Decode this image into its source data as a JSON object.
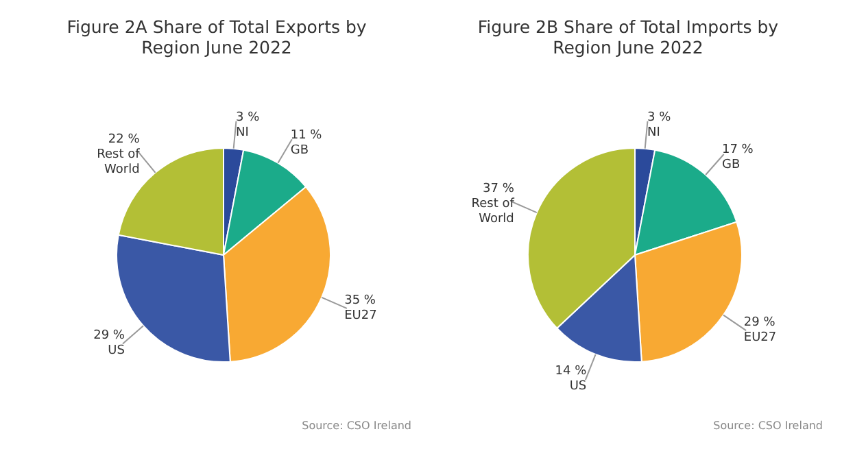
{
  "chart_data": [
    {
      "type": "pie",
      "title": "Figure 2A Share of Total Exports by Region June 2022",
      "categories": [
        "NI",
        "GB",
        "EU27",
        "US",
        "Rest of World"
      ],
      "values": [
        3,
        11,
        35,
        29,
        22
      ],
      "value_labels": [
        "3 %",
        "11 %",
        "35 %",
        "29 %",
        "22 %"
      ],
      "colors": [
        "#2b4a9b",
        "#1bab8a",
        "#f8a933",
        "#3a58a6",
        "#b3bf36"
      ],
      "annotations": [
        "Source: CSO Ireland"
      ]
    },
    {
      "type": "pie",
      "title": "Figure 2B Share of Total Imports by Region June 2022",
      "categories": [
        "NI",
        "GB",
        "EU27",
        "US",
        "Rest of World"
      ],
      "values": [
        3,
        17,
        29,
        14,
        37
      ],
      "value_labels": [
        "3 %",
        "17 %",
        "29 %",
        "14 %",
        "37 %"
      ],
      "colors": [
        "#2b4a9b",
        "#1bab8a",
        "#f8a933",
        "#3a58a6",
        "#b3bf36"
      ],
      "annotations": [
        "Source: CSO Ireland"
      ]
    }
  ]
}
